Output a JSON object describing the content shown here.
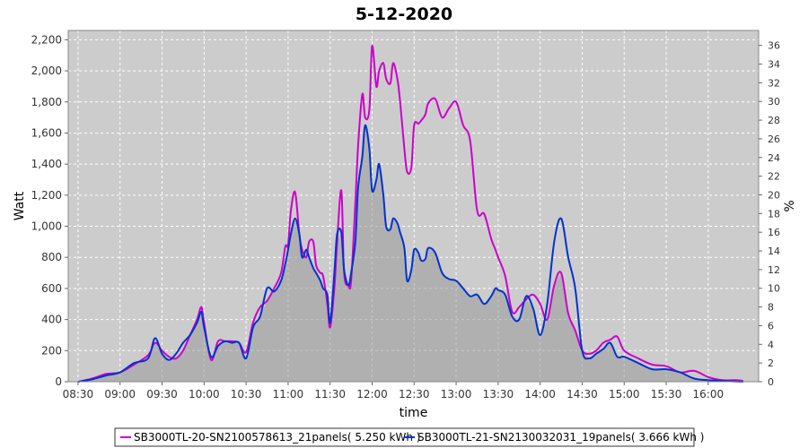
{
  "chart_data": {
    "type": "line",
    "title": "5-12-2020",
    "xlabel": "time",
    "ylabel": "Watt",
    "y2label": "%",
    "ylim": [
      0,
      2260
    ],
    "y2lim": [
      0,
      37.6
    ],
    "xlim": [
      "08:23",
      "16:36"
    ],
    "yticks": [
      0,
      200,
      400,
      600,
      800,
      1000,
      1200,
      1400,
      1600,
      1800,
      2000,
      2200
    ],
    "ytick_labels": [
      "0",
      "200",
      "400",
      "600",
      "800",
      "1,000",
      "1,200",
      "1,400",
      "1,600",
      "1,800",
      "2,000",
      "2,200"
    ],
    "y2ticks": [
      0,
      2,
      4,
      6,
      8,
      10,
      12,
      14,
      16,
      18,
      20,
      22,
      24,
      26,
      28,
      30,
      32,
      34,
      36
    ],
    "xticks": [
      "08:30",
      "09:00",
      "09:30",
      "10:00",
      "10:30",
      "11:00",
      "11:30",
      "12:00",
      "12:30",
      "13:00",
      "13:30",
      "14:00",
      "14:30",
      "15:00",
      "15:30",
      "16:00"
    ],
    "grid": true,
    "legend_position": "bottom",
    "colors": {
      "plot_bg": "#cccccc",
      "grid": "#ffffff",
      "area": "#999999"
    },
    "series": [
      {
        "name": "SB3000TL-20-SN2100578613_21panels( 5.250 kWh )",
        "color": "#cc00cc",
        "x": [
          "08:30",
          "08:40",
          "08:50",
          "09:00",
          "09:10",
          "09:20",
          "09:25",
          "09:30",
          "09:35",
          "09:40",
          "09:45",
          "09:50",
          "09:55",
          "09:58",
          "10:00",
          "10:05",
          "10:10",
          "10:15",
          "10:20",
          "10:25",
          "10:30",
          "10:35",
          "10:40",
          "10:45",
          "10:50",
          "10:55",
          "10:58",
          "11:00",
          "11:02",
          "11:05",
          "11:08",
          "11:10",
          "11:13",
          "11:15",
          "11:18",
          "11:20",
          "11:23",
          "11:25",
          "11:28",
          "11:30",
          "11:33",
          "11:35",
          "11:38",
          "11:40",
          "11:43",
          "11:45",
          "11:48",
          "11:50",
          "11:53",
          "11:55",
          "11:58",
          "12:00",
          "12:03",
          "12:05",
          "12:08",
          "12:10",
          "12:13",
          "12:15",
          "12:18",
          "12:20",
          "12:23",
          "12:25",
          "12:28",
          "12:30",
          "12:33",
          "12:35",
          "12:38",
          "12:40",
          "12:45",
          "12:50",
          "12:55",
          "13:00",
          "13:05",
          "13:10",
          "13:15",
          "13:20",
          "13:25",
          "13:28",
          "13:30",
          "13:35",
          "13:40",
          "13:45",
          "13:50",
          "13:55",
          "14:00",
          "14:05",
          "14:10",
          "14:15",
          "14:20",
          "14:25",
          "14:30",
          "14:35",
          "14:40",
          "14:45",
          "14:50",
          "14:55",
          "15:00",
          "15:10",
          "15:20",
          "15:30",
          "15:40",
          "15:50",
          "16:00",
          "16:10",
          "16:20",
          "16:25"
        ],
        "values": [
          0,
          20,
          50,
          60,
          110,
          170,
          250,
          200,
          160,
          150,
          200,
          300,
          400,
          480,
          380,
          140,
          260,
          260,
          260,
          250,
          190,
          380,
          480,
          520,
          600,
          700,
          870,
          880,
          1100,
          1220,
          950,
          850,
          800,
          900,
          900,
          750,
          700,
          680,
          500,
          350,
          600,
          900,
          1230,
          700,
          620,
          650,
          1150,
          1520,
          1850,
          1700,
          1750,
          2160,
          1900,
          2000,
          2050,
          1950,
          1920,
          2050,
          1950,
          1800,
          1500,
          1350,
          1380,
          1650,
          1660,
          1680,
          1720,
          1790,
          1820,
          1700,
          1760,
          1800,
          1650,
          1550,
          1100,
          1080,
          920,
          850,
          800,
          680,
          450,
          480,
          530,
          560,
          500,
          400,
          620,
          700,
          440,
          330,
          200,
          180,
          200,
          250,
          270,
          290,
          200,
          150,
          110,
          100,
          60,
          70,
          30,
          10,
          10,
          5
        ]
      },
      {
        "name": "SB3000TL-21-SN2130032031_19panels( 3.666 kWh )",
        "color": "#0033cc",
        "x": [
          "08:30",
          "08:40",
          "08:50",
          "09:00",
          "09:10",
          "09:20",
          "09:25",
          "09:30",
          "09:35",
          "09:40",
          "09:45",
          "09:50",
          "09:55",
          "09:58",
          "10:00",
          "10:05",
          "10:10",
          "10:15",
          "10:20",
          "10:25",
          "10:30",
          "10:35",
          "10:40",
          "10:45",
          "10:50",
          "10:55",
          "10:58",
          "11:00",
          "11:02",
          "11:05",
          "11:08",
          "11:10",
          "11:13",
          "11:15",
          "11:18",
          "11:20",
          "11:23",
          "11:25",
          "11:28",
          "11:30",
          "11:33",
          "11:35",
          "11:38",
          "11:40",
          "11:43",
          "11:45",
          "11:48",
          "11:50",
          "11:53",
          "11:55",
          "11:58",
          "12:00",
          "12:03",
          "12:05",
          "12:08",
          "12:10",
          "12:13",
          "12:15",
          "12:18",
          "12:20",
          "12:23",
          "12:25",
          "12:28",
          "12:30",
          "12:33",
          "12:35",
          "12:38",
          "12:40",
          "12:45",
          "12:50",
          "12:55",
          "13:00",
          "13:05",
          "13:10",
          "13:15",
          "13:20",
          "13:25",
          "13:28",
          "13:30",
          "13:35",
          "13:40",
          "13:45",
          "13:50",
          "13:55",
          "14:00",
          "14:05",
          "14:10",
          "14:15",
          "14:20",
          "14:25",
          "14:30",
          "14:35",
          "14:40",
          "14:45",
          "14:50",
          "14:55",
          "15:00",
          "15:10",
          "15:20",
          "15:30",
          "15:40",
          "15:50",
          "16:00",
          "16:10",
          "16:20",
          "16:25"
        ],
        "values": [
          0,
          15,
          40,
          60,
          120,
          150,
          280,
          180,
          140,
          180,
          250,
          300,
          380,
          450,
          350,
          160,
          230,
          260,
          250,
          250,
          150,
          350,
          420,
          600,
          580,
          650,
          760,
          850,
          950,
          1050,
          950,
          800,
          850,
          800,
          730,
          700,
          650,
          600,
          560,
          380,
          700,
          950,
          960,
          720,
          620,
          700,
          900,
          1250,
          1450,
          1650,
          1500,
          1230,
          1300,
          1400,
          1200,
          1000,
          980,
          1050,
          1020,
          960,
          860,
          650,
          720,
          850,
          830,
          780,
          790,
          860,
          830,
          700,
          660,
          650,
          600,
          550,
          560,
          500,
          550,
          600,
          590,
          560,
          420,
          400,
          550,
          470,
          300,
          500,
          900,
          1050,
          800,
          600,
          200,
          150,
          180,
          210,
          250,
          160,
          160,
          120,
          80,
          80,
          60,
          20,
          10,
          5,
          2,
          0
        ]
      }
    ]
  }
}
